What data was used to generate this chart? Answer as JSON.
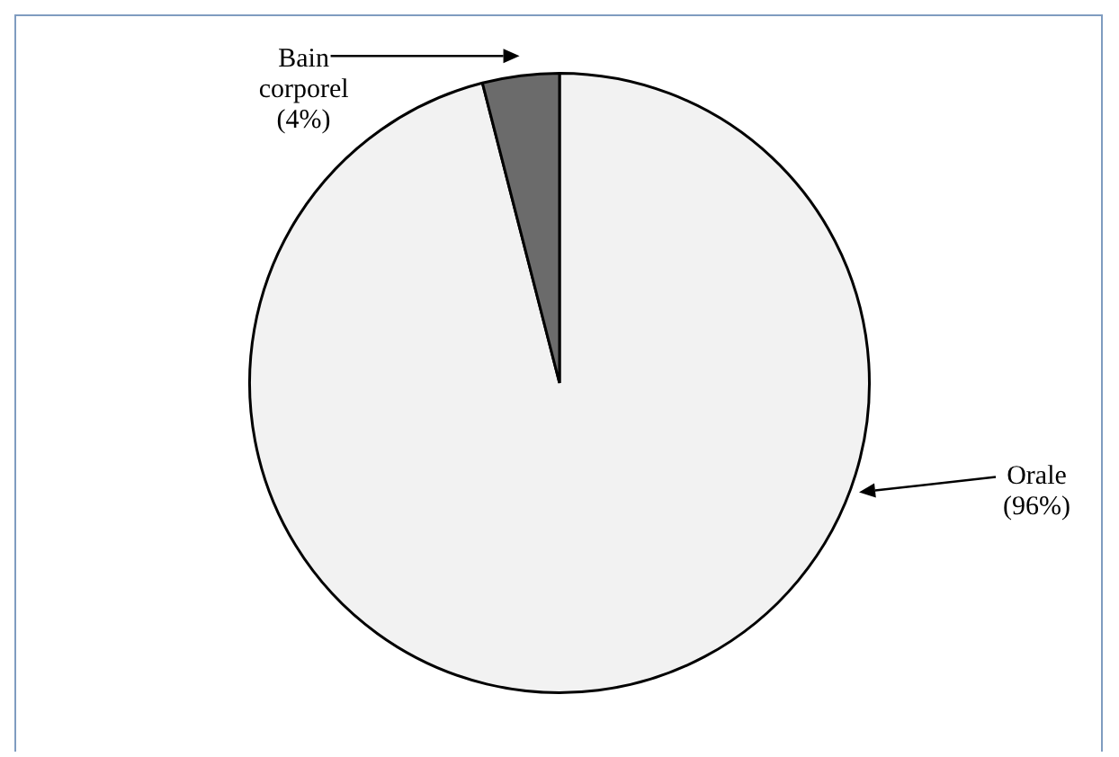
{
  "chart_data": {
    "type": "pie",
    "categories": [
      "Orale",
      "Bain corporel"
    ],
    "values": [
      96,
      4
    ],
    "colors": [
      "#f2f2f2",
      "#6b6b6b"
    ],
    "value_labels": [
      "(96%)",
      "(4%)"
    ],
    "legend": false
  }
}
